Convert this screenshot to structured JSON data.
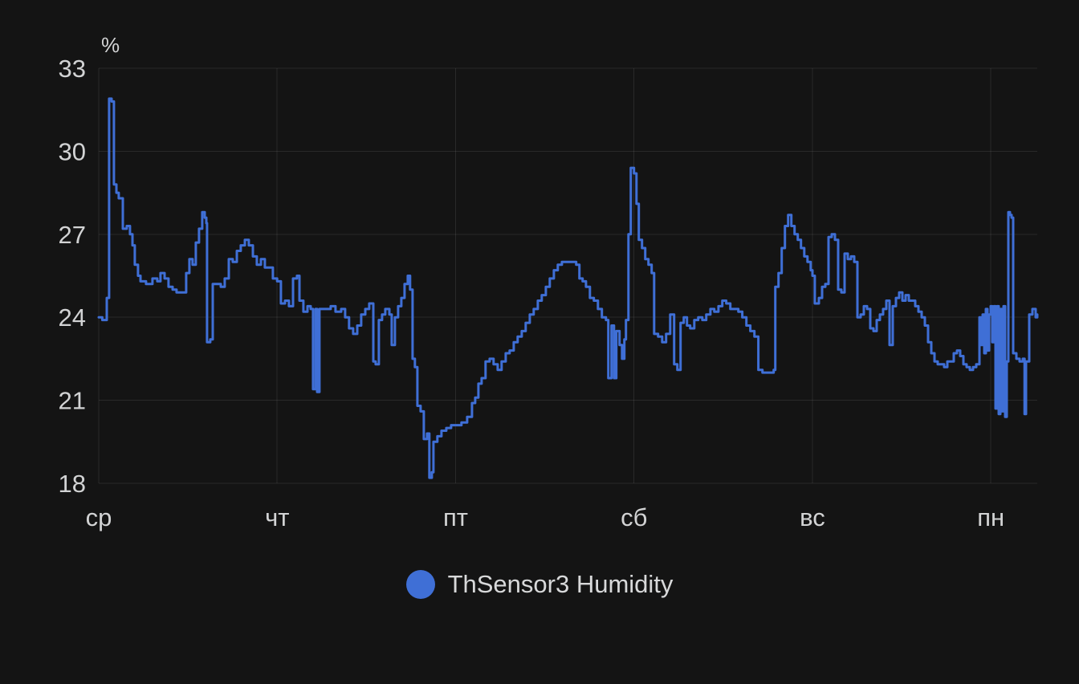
{
  "page": {
    "background": "#141414",
    "text_color": "#d2d3d4"
  },
  "chart": {
    "unit": "%",
    "legend": {
      "label": "ThSensor3 Humidity",
      "swatch_color": "#3f6fd6"
    }
  },
  "chart_data": {
    "type": "line",
    "interpolation": "step-after",
    "title": "",
    "ylabel": "%",
    "xlabel": "",
    "ylim": [
      18,
      33
    ],
    "xlim": [
      0,
      5.26
    ],
    "grid": true,
    "legend_position": "bottom-center",
    "background": "#141414",
    "y_ticks": [
      33,
      30,
      27,
      24,
      21,
      18
    ],
    "x_ticks": [
      {
        "t": 0,
        "label": "ср"
      },
      {
        "t": 1,
        "label": "чт"
      },
      {
        "t": 2,
        "label": "пт"
      },
      {
        "t": 3,
        "label": "сб"
      },
      {
        "t": 4,
        "label": "вс"
      },
      {
        "t": 5,
        "label": "пн"
      }
    ],
    "series": [
      {
        "name": "ThSensor3 Humidity",
        "color": "#3f6fd6",
        "x_unit": "days from first tick (ср)",
        "points": [
          [
            0.0,
            24.0
          ],
          [
            0.02,
            23.9
          ],
          [
            0.045,
            24.7
          ],
          [
            0.058,
            31.9
          ],
          [
            0.072,
            31.8
          ],
          [
            0.085,
            28.8
          ],
          [
            0.099,
            28.5
          ],
          [
            0.112,
            28.3
          ],
          [
            0.135,
            27.2
          ],
          [
            0.157,
            27.3
          ],
          [
            0.175,
            27.0
          ],
          [
            0.189,
            26.6
          ],
          [
            0.202,
            25.9
          ],
          [
            0.22,
            25.5
          ],
          [
            0.234,
            25.3
          ],
          [
            0.265,
            25.2
          ],
          [
            0.301,
            25.4
          ],
          [
            0.328,
            25.3
          ],
          [
            0.346,
            25.6
          ],
          [
            0.369,
            25.4
          ],
          [
            0.391,
            25.1
          ],
          [
            0.414,
            25.0
          ],
          [
            0.436,
            24.9
          ],
          [
            0.472,
            24.9
          ],
          [
            0.49,
            25.6
          ],
          [
            0.508,
            26.1
          ],
          [
            0.526,
            25.9
          ],
          [
            0.544,
            26.7
          ],
          [
            0.562,
            27.2
          ],
          [
            0.58,
            27.8
          ],
          [
            0.594,
            27.6
          ],
          [
            0.603,
            27.4
          ],
          [
            0.607,
            23.1
          ],
          [
            0.625,
            23.2
          ],
          [
            0.639,
            25.2
          ],
          [
            0.661,
            25.2
          ],
          [
            0.684,
            25.1
          ],
          [
            0.706,
            25.4
          ],
          [
            0.729,
            26.1
          ],
          [
            0.751,
            26.0
          ],
          [
            0.774,
            26.4
          ],
          [
            0.796,
            26.6
          ],
          [
            0.819,
            26.8
          ],
          [
            0.841,
            26.6
          ],
          [
            0.864,
            26.2
          ],
          [
            0.886,
            25.9
          ],
          [
            0.909,
            26.1
          ],
          [
            0.931,
            25.8
          ],
          [
            0.954,
            25.8
          ],
          [
            0.976,
            25.4
          ],
          [
            1.0,
            25.3
          ],
          [
            1.021,
            24.5
          ],
          [
            1.044,
            24.6
          ],
          [
            1.066,
            24.4
          ],
          [
            1.089,
            25.4
          ],
          [
            1.111,
            25.5
          ],
          [
            1.125,
            24.6
          ],
          [
            1.147,
            24.2
          ],
          [
            1.17,
            24.4
          ],
          [
            1.188,
            24.3
          ],
          [
            1.201,
            21.4
          ],
          [
            1.215,
            24.3
          ],
          [
            1.224,
            21.3
          ],
          [
            1.237,
            24.3
          ],
          [
            1.269,
            24.3
          ],
          [
            1.3,
            24.4
          ],
          [
            1.327,
            24.2
          ],
          [
            1.359,
            24.3
          ],
          [
            1.381,
            24.0
          ],
          [
            1.403,
            23.6
          ],
          [
            1.426,
            23.4
          ],
          [
            1.449,
            23.7
          ],
          [
            1.471,
            24.1
          ],
          [
            1.494,
            24.3
          ],
          [
            1.516,
            24.5
          ],
          [
            1.539,
            22.4
          ],
          [
            1.552,
            22.3
          ],
          [
            1.57,
            23.9
          ],
          [
            1.588,
            24.1
          ],
          [
            1.606,
            24.3
          ],
          [
            1.629,
            24.1
          ],
          [
            1.642,
            23.0
          ],
          [
            1.66,
            24.0
          ],
          [
            1.678,
            24.4
          ],
          [
            1.696,
            24.7
          ],
          [
            1.714,
            25.2
          ],
          [
            1.732,
            25.5
          ],
          [
            1.745,
            25.0
          ],
          [
            1.759,
            22.5
          ],
          [
            1.772,
            22.2
          ],
          [
            1.786,
            20.8
          ],
          [
            1.804,
            20.6
          ],
          [
            1.822,
            19.6
          ],
          [
            1.84,
            19.8
          ],
          [
            1.853,
            18.2
          ],
          [
            1.867,
            18.4
          ],
          [
            1.876,
            19.5
          ],
          [
            1.898,
            19.7
          ],
          [
            1.921,
            19.9
          ],
          [
            1.948,
            20.0
          ],
          [
            1.975,
            20.1
          ],
          [
            2.002,
            20.1
          ],
          [
            2.033,
            20.2
          ],
          [
            2.065,
            20.4
          ],
          [
            2.092,
            20.9
          ],
          [
            2.11,
            21.1
          ],
          [
            2.128,
            21.6
          ],
          [
            2.146,
            21.8
          ],
          [
            2.168,
            22.4
          ],
          [
            2.191,
            22.5
          ],
          [
            2.213,
            22.3
          ],
          [
            2.236,
            22.1
          ],
          [
            2.258,
            22.4
          ],
          [
            2.281,
            22.7
          ],
          [
            2.303,
            22.8
          ],
          [
            2.326,
            23.1
          ],
          [
            2.348,
            23.3
          ],
          [
            2.371,
            23.5
          ],
          [
            2.393,
            23.8
          ],
          [
            2.416,
            24.1
          ],
          [
            2.438,
            24.3
          ],
          [
            2.461,
            24.6
          ],
          [
            2.483,
            24.8
          ],
          [
            2.506,
            25.1
          ],
          [
            2.528,
            25.4
          ],
          [
            2.551,
            25.7
          ],
          [
            2.573,
            25.9
          ],
          [
            2.596,
            26.0
          ],
          [
            2.641,
            26.0
          ],
          [
            2.676,
            25.9
          ],
          [
            2.694,
            25.4
          ],
          [
            2.712,
            25.3
          ],
          [
            2.731,
            25.1
          ],
          [
            2.753,
            24.7
          ],
          [
            2.775,
            24.6
          ],
          [
            2.798,
            24.3
          ],
          [
            2.82,
            24.0
          ],
          [
            2.843,
            23.9
          ],
          [
            2.856,
            21.8
          ],
          [
            2.874,
            23.7
          ],
          [
            2.888,
            21.8
          ],
          [
            2.901,
            23.5
          ],
          [
            2.919,
            23.0
          ],
          [
            2.933,
            22.5
          ],
          [
            2.946,
            23.2
          ],
          [
            2.955,
            23.9
          ],
          [
            2.969,
            27.0
          ],
          [
            2.982,
            29.4
          ],
          [
            3.0,
            29.2
          ],
          [
            3.014,
            28.1
          ],
          [
            3.027,
            26.8
          ],
          [
            3.045,
            26.5
          ],
          [
            3.063,
            26.1
          ],
          [
            3.081,
            25.9
          ],
          [
            3.099,
            25.6
          ],
          [
            3.113,
            23.4
          ],
          [
            3.135,
            23.3
          ],
          [
            3.158,
            23.1
          ],
          [
            3.18,
            23.4
          ],
          [
            3.203,
            24.1
          ],
          [
            3.225,
            22.3
          ],
          [
            3.243,
            22.1
          ],
          [
            3.261,
            23.8
          ],
          [
            3.279,
            24.0
          ],
          [
            3.297,
            23.7
          ],
          [
            3.315,
            23.6
          ],
          [
            3.338,
            23.9
          ],
          [
            3.36,
            24.0
          ],
          [
            3.383,
            23.9
          ],
          [
            3.405,
            24.1
          ],
          [
            3.428,
            24.3
          ],
          [
            3.45,
            24.2
          ],
          [
            3.473,
            24.4
          ],
          [
            3.495,
            24.6
          ],
          [
            3.517,
            24.5
          ],
          [
            3.54,
            24.3
          ],
          [
            3.562,
            24.3
          ],
          [
            3.585,
            24.2
          ],
          [
            3.607,
            24.0
          ],
          [
            3.63,
            23.7
          ],
          [
            3.652,
            23.5
          ],
          [
            3.675,
            23.3
          ],
          [
            3.697,
            22.1
          ],
          [
            3.72,
            22.0
          ],
          [
            3.756,
            22.0
          ],
          [
            3.783,
            22.1
          ],
          [
            3.792,
            25.1
          ],
          [
            3.81,
            25.6
          ],
          [
            3.828,
            26.5
          ],
          [
            3.846,
            27.3
          ],
          [
            3.864,
            27.7
          ],
          [
            3.882,
            27.3
          ],
          [
            3.9,
            27.0
          ],
          [
            3.918,
            26.8
          ],
          [
            3.936,
            26.5
          ],
          [
            3.954,
            26.2
          ],
          [
            3.972,
            26.0
          ],
          [
            3.99,
            25.7
          ],
          [
            4.0,
            25.5
          ],
          [
            4.013,
            24.5
          ],
          [
            4.036,
            24.7
          ],
          [
            4.054,
            25.1
          ],
          [
            4.072,
            25.2
          ],
          [
            4.09,
            26.9
          ],
          [
            4.108,
            27.0
          ],
          [
            4.126,
            26.8
          ],
          [
            4.144,
            25.0
          ],
          [
            4.162,
            24.9
          ],
          [
            4.18,
            26.3
          ],
          [
            4.198,
            26.1
          ],
          [
            4.216,
            26.2
          ],
          [
            4.234,
            26.0
          ],
          [
            4.252,
            24.0
          ],
          [
            4.27,
            24.1
          ],
          [
            4.288,
            24.4
          ],
          [
            4.306,
            24.3
          ],
          [
            4.324,
            23.6
          ],
          [
            4.342,
            23.5
          ],
          [
            4.36,
            23.9
          ],
          [
            4.378,
            24.1
          ],
          [
            4.396,
            24.3
          ],
          [
            4.414,
            24.6
          ],
          [
            4.432,
            23.0
          ],
          [
            4.45,
            24.4
          ],
          [
            4.468,
            24.7
          ],
          [
            4.486,
            24.9
          ],
          [
            4.504,
            24.6
          ],
          [
            4.522,
            24.8
          ],
          [
            4.54,
            24.6
          ],
          [
            4.558,
            24.6
          ],
          [
            4.576,
            24.4
          ],
          [
            4.594,
            24.2
          ],
          [
            4.612,
            24.0
          ],
          [
            4.63,
            23.7
          ],
          [
            4.648,
            23.1
          ],
          [
            4.666,
            22.7
          ],
          [
            4.684,
            22.4
          ],
          [
            4.702,
            22.3
          ],
          [
            4.72,
            22.3
          ],
          [
            4.738,
            22.2
          ],
          [
            4.756,
            22.4
          ],
          [
            4.774,
            22.4
          ],
          [
            4.792,
            22.7
          ],
          [
            4.81,
            22.8
          ],
          [
            4.828,
            22.6
          ],
          [
            4.846,
            22.3
          ],
          [
            4.864,
            22.2
          ],
          [
            4.882,
            22.1
          ],
          [
            4.9,
            22.2
          ],
          [
            4.918,
            22.3
          ],
          [
            4.936,
            24.0
          ],
          [
            4.945,
            23.0
          ],
          [
            4.954,
            24.1
          ],
          [
            4.963,
            22.7
          ],
          [
            4.972,
            24.3
          ],
          [
            4.981,
            22.8
          ],
          [
            4.99,
            24.1
          ],
          [
            4.999,
            24.4
          ],
          [
            5.008,
            23.1
          ],
          [
            5.017,
            24.4
          ],
          [
            5.026,
            20.7
          ],
          [
            5.035,
            24.4
          ],
          [
            5.044,
            20.5
          ],
          [
            5.053,
            24.3
          ],
          [
            5.062,
            20.6
          ],
          [
            5.071,
            24.4
          ],
          [
            5.08,
            20.4
          ],
          [
            5.089,
            22.4
          ],
          [
            5.098,
            27.8
          ],
          [
            5.107,
            27.7
          ],
          [
            5.116,
            27.6
          ],
          [
            5.125,
            22.7
          ],
          [
            5.143,
            22.5
          ],
          [
            5.161,
            22.4
          ],
          [
            5.179,
            22.5
          ],
          [
            5.189,
            20.5
          ],
          [
            5.197,
            22.4
          ],
          [
            5.215,
            24.1
          ],
          [
            5.233,
            24.3
          ],
          [
            5.251,
            24.0
          ],
          [
            5.26,
            24.1
          ]
        ]
      }
    ]
  }
}
